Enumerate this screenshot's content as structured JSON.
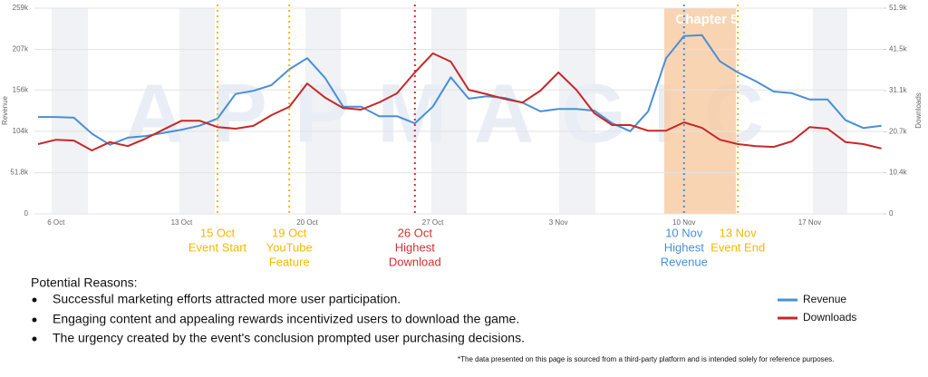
{
  "chart_data": {
    "type": "line",
    "watermark": "APPMAGIC",
    "band_label": "Chapter 5",
    "y_label": "Revenue",
    "y2_label": "Downloads",
    "categories": [
      null,
      "6 Oct",
      null,
      null,
      null,
      null,
      null,
      null,
      "13 Oct",
      null,
      null,
      null,
      null,
      null,
      null,
      "20 Oct",
      null,
      null,
      null,
      null,
      null,
      null,
      "27 Oct",
      null,
      null,
      null,
      null,
      null,
      null,
      "3 Nov",
      null,
      null,
      null,
      null,
      null,
      null,
      "10 Nov",
      null,
      null,
      null,
      null,
      null,
      null,
      "17 Nov",
      null,
      null,
      null,
      null
    ],
    "series": [
      {
        "name": "Revenue",
        "color": "#4a8fd6",
        "values": [
          122000,
          122000,
          121000,
          101000,
          87000,
          96000,
          98000,
          102000,
          106000,
          111000,
          120000,
          151000,
          155000,
          162000,
          182000,
          196000,
          171000,
          135000,
          135000,
          123000,
          123000,
          114000,
          135000,
          172000,
          145000,
          148000,
          146000,
          140000,
          129000,
          132000,
          132000,
          130000,
          114000,
          104000,
          129000,
          196000,
          224000,
          225000,
          192000,
          178000,
          167000,
          154000,
          152000,
          144000,
          144000,
          118000,
          108000,
          111000
        ]
      },
      {
        "name": "Downloads",
        "color": "#c62828",
        "axis": "y2",
        "values": [
          17600,
          18700,
          18500,
          16000,
          18100,
          17100,
          19000,
          21300,
          23500,
          23500,
          21900,
          21500,
          22200,
          24900,
          27000,
          32900,
          29300,
          26700,
          26300,
          28100,
          30400,
          35700,
          40500,
          38400,
          31300,
          30200,
          29000,
          28100,
          31100,
          35700,
          31300,
          25400,
          22400,
          22400,
          21000,
          21000,
          23100,
          21700,
          18700,
          17600,
          17100,
          16900,
          18300,
          21900,
          21500,
          18100,
          17600,
          16500
        ]
      }
    ],
    "ylim": [
      0,
      259000
    ],
    "yticks": [
      0,
      {
        "value": 51800,
        "label": "51.8k"
      },
      {
        "value": 104000,
        "label": "104k"
      },
      {
        "value": 156000,
        "label": "156k"
      },
      {
        "value": 207000,
        "label": "207k"
      },
      {
        "value": 259000,
        "label": "259k"
      }
    ],
    "y2lim": [
      0,
      51900
    ],
    "y2ticks": [
      0,
      {
        "value": 10400,
        "label": "10.4k"
      },
      {
        "value": 20700,
        "label": "20.7k"
      },
      {
        "value": 31100,
        "label": "31.1k"
      },
      {
        "value": 41500,
        "label": "41.5k"
      },
      {
        "value": 51900,
        "label": "51.9k"
      }
    ],
    "grid": true,
    "markers": [
      {
        "lines": [
          "15 Oct",
          "Event Start"
        ],
        "color": "#f5b800"
      },
      {
        "lines": [
          "19 Oct",
          "YouTube",
          "Feature"
        ],
        "color": "#f5b800"
      },
      {
        "lines": [
          "26 Oct",
          "Highest",
          "Download"
        ],
        "color": "#d32f2f"
      },
      {
        "lines": [
          "10 Nov",
          "Highest",
          "Revenue"
        ],
        "color": "#4a8fd6"
      },
      {
        "lines": [
          "13 Nov",
          "Event End"
        ],
        "color": "#f5b800"
      }
    ]
  },
  "notes": {
    "heading": "Potential Reasons:",
    "bullets": [
      "Successful marketing efforts attracted more user participation.",
      "Engaging content and appealing rewards incentivized users to download the game.",
      "The urgency created by the event's conclusion prompted user purchasing decisions."
    ]
  },
  "footnote": "*The data presented on this page is sourced from a third-party platform and is intended solely for reference purposes."
}
